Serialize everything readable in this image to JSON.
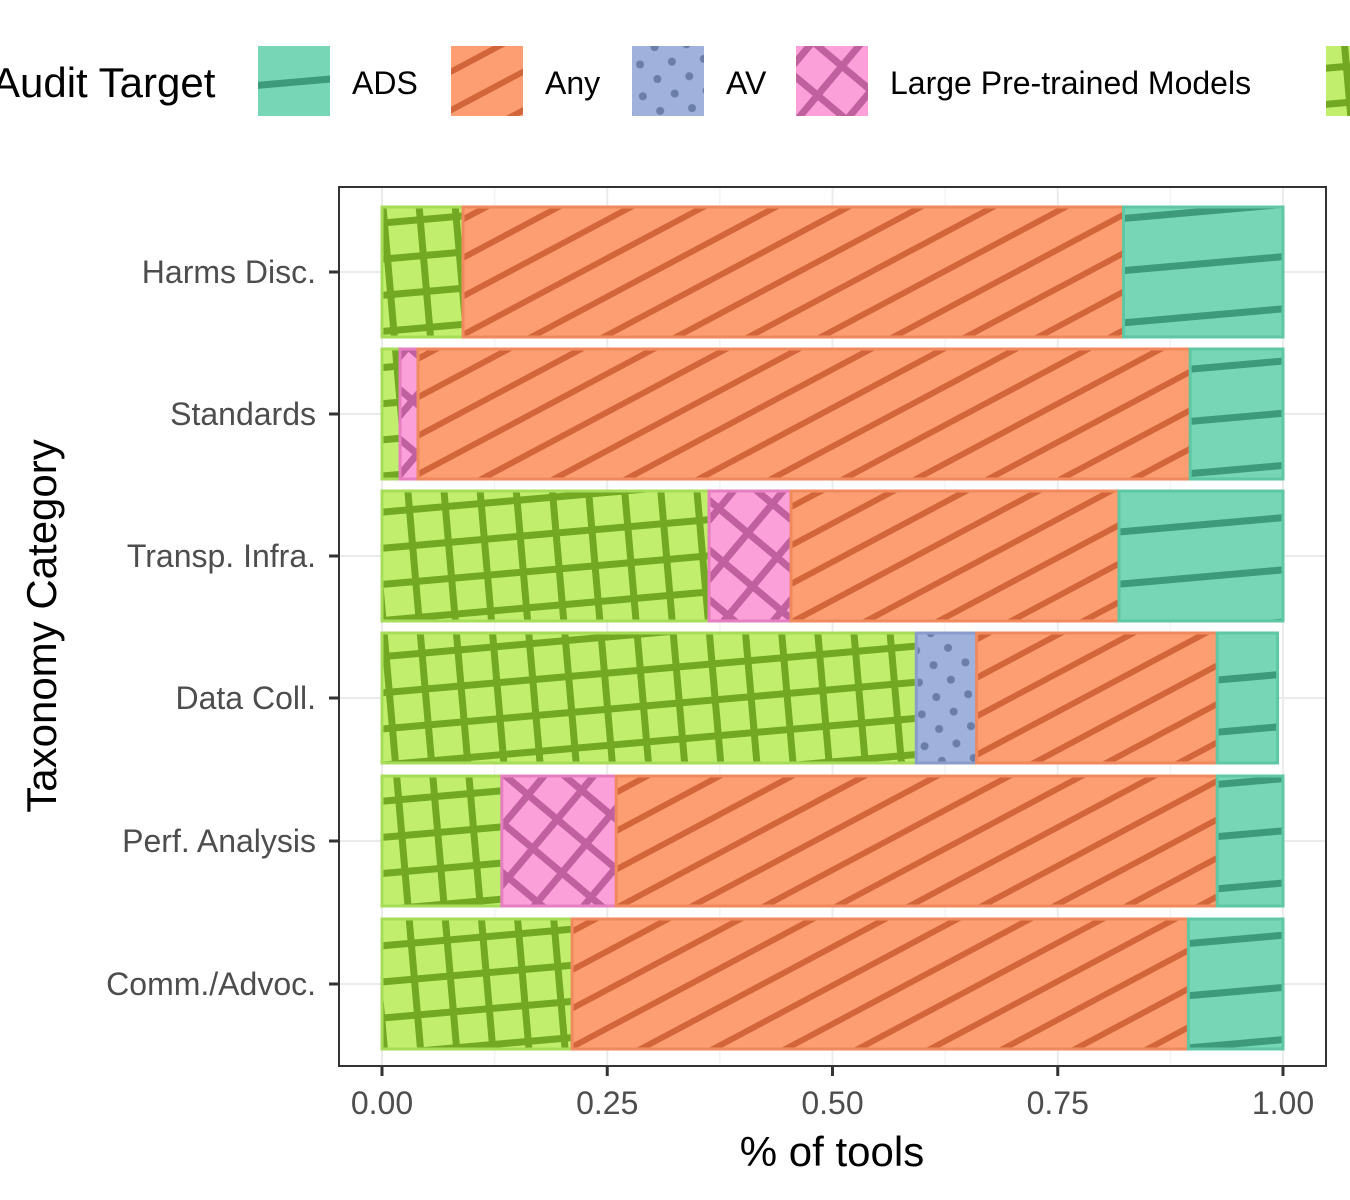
{
  "chart_data": {
    "type": "bar",
    "orientation": "horizontal",
    "stacked": true,
    "xlabel": "% of tools",
    "ylabel": "Taxonomy Category",
    "xlim": [
      0,
      1
    ],
    "xticks": [
      "0.00",
      "0.25",
      "0.50",
      "0.75",
      "1.00"
    ],
    "grid": true,
    "legend": {
      "title": "Audit Target",
      "placement": "top",
      "entries": [
        "ADS",
        "Any",
        "AV",
        "Large Pre-trained Models"
      ]
    },
    "categories": [
      "Harms Disc.",
      "Standards",
      "Transp. Infra.",
      "Data Coll.",
      "Perf. Analysis",
      "Comm./Advoc."
    ],
    "series": [
      {
        "name": "Large Pre-trained Models",
        "color": "#c1ef6d",
        "pattern": "grid",
        "pattern_color": "#72a822",
        "values": [
          0,
          0.02,
          0.091,
          0,
          0.127,
          0
        ]
      },
      {
        "name": "AV",
        "color": "#a0b1db",
        "pattern": "dots",
        "pattern_color": "#6b7ea8",
        "values": [
          0,
          0,
          0,
          0.067,
          0,
          0
        ]
      },
      {
        "name": "Any",
        "color": "#fc9d72",
        "pattern": "stripes",
        "pattern_color": "#d3653a",
        "values": [
          0.733,
          0.857,
          0.364,
          0.267,
          0.667,
          0.684
        ]
      },
      {
        "name": "ADS",
        "color": "#77d6b6",
        "pattern": "stripes-flat",
        "pattern_color": "#3d9a7a",
        "values": [
          0.177,
          0.103,
          0.182,
          0.067,
          0.073,
          0.105
        ]
      },
      {
        "name": "",
        "color": "#c1ef6d",
        "pattern": "grid",
        "pattern_color": "#72a822",
        "values": [
          0.09,
          0.02,
          0.363,
          0.593,
          0.133,
          0.211
        ]
      }
    ]
  }
}
